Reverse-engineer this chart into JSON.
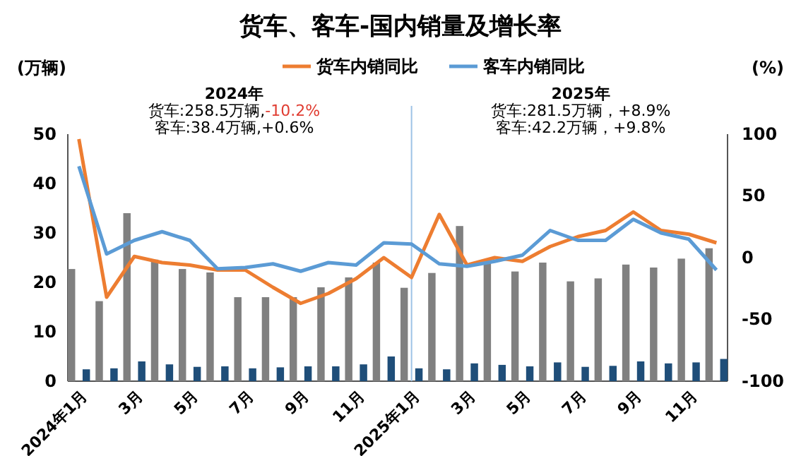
{
  "chart_data": {
    "type": "bar",
    "title": "货车、客车-国内销量及增长率",
    "ylabel": "(万辆)",
    "y2label": "(%)",
    "categories": [
      "2024年1月",
      null,
      "3月",
      null,
      "5月",
      null,
      "7月",
      null,
      "9月",
      null,
      "11月",
      null,
      "2025年1月",
      null,
      "3月",
      null,
      "5月",
      null,
      "7月",
      null,
      "9月",
      null,
      "11月",
      null
    ],
    "series": [
      {
        "color": "#808080",
        "values": [
          22.7,
          16.2,
          34,
          24.6,
          22.7,
          22,
          17,
          17,
          17,
          19,
          21,
          24,
          18.9,
          21.9,
          31.4,
          24,
          22.2,
          24,
          20.2,
          20.8,
          23.6,
          23,
          24.8,
          26.9
        ]
      },
      {
        "color": "#1f4e79",
        "values": [
          2.4,
          2.6,
          4,
          3.4,
          2.9,
          3,
          2.6,
          2.8,
          3,
          3,
          3.4,
          5,
          2.6,
          2.4,
          3.6,
          3.3,
          3,
          3.8,
          2.9,
          3.1,
          4,
          3.6,
          3.8,
          4.5
        ]
      },
      {
        "type": "line",
        "name": "货车内销同比",
        "axis": "y2",
        "color": "#ed7d31",
        "values": [
          96,
          -32,
          1,
          -4,
          -6,
          -10,
          -10,
          -24,
          -37,
          -29,
          -17,
          0,
          -16,
          35,
          -6,
          0,
          -3,
          9,
          17,
          22,
          37,
          22,
          19,
          12
        ]
      },
      {
        "type": "line",
        "name": "客车内销同比",
        "axis": "y2",
        "color": "#5b9bd5",
        "values": [
          74,
          3,
          14,
          21,
          14,
          -9,
          -8,
          -5,
          -11,
          -4,
          -6,
          12,
          11,
          -5,
          -7,
          -3,
          2,
          22,
          14,
          14,
          31,
          20,
          15,
          -10
        ]
      }
    ],
    "ylim": [
      0,
      50
    ],
    "yticks": [
      0,
      10,
      20,
      30,
      40,
      50
    ],
    "y2lim": [
      -100,
      100
    ],
    "y2ticks": [
      -100,
      -50,
      0,
      50,
      100
    ],
    "ref_lines": [
      {
        "axis": "x",
        "value": "2025年1月",
        "color": "#9dc3e6"
      }
    ],
    "annotations": [
      "2024年",
      "货车:258.5万辆,-10.2%",
      "客车:38.4万辆,+0.6%",
      "2025年",
      "货车:281.5万辆，+8.9%",
      "客车:42.2万辆，+9.8%"
    ],
    "legend": "top",
    "marker": "none",
    "line_style": "solid"
  }
}
